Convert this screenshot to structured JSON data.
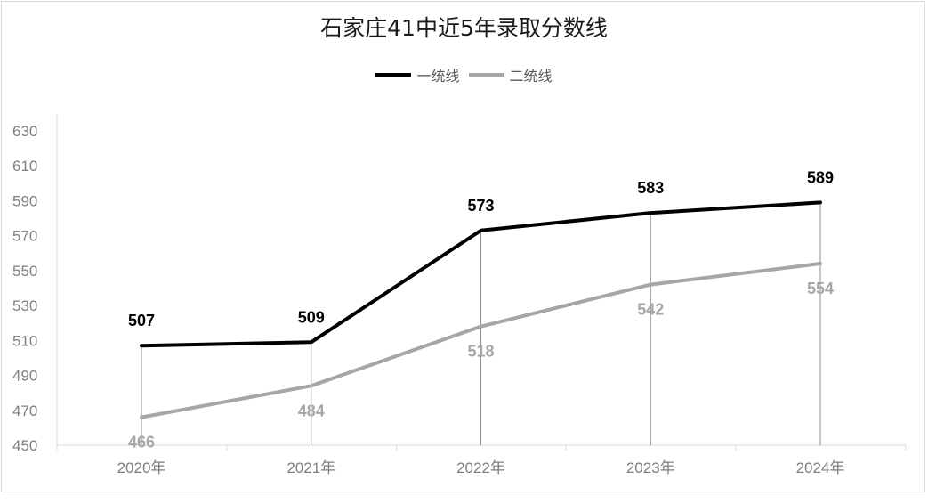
{
  "chart_data": {
    "type": "line",
    "title": "石家庄41中近5年录取分数线",
    "categories": [
      "2020年",
      "2021年",
      "2022年",
      "2023年",
      "2024年"
    ],
    "series": [
      {
        "name": "一统线",
        "values": [
          507,
          509,
          573,
          583,
          589
        ],
        "color": "#000000"
      },
      {
        "name": "二统线",
        "values": [
          466,
          484,
          518,
          542,
          554
        ],
        "color": "#a6a6a6"
      }
    ],
    "y_ticks": [
      "450",
      "470",
      "490",
      "510",
      "530",
      "550",
      "570",
      "590",
      "610",
      "630"
    ],
    "ylim": [
      450,
      630
    ],
    "xlabel": "",
    "ylabel": "",
    "grid": false,
    "drop_lines": true,
    "legend_position": "top"
  }
}
